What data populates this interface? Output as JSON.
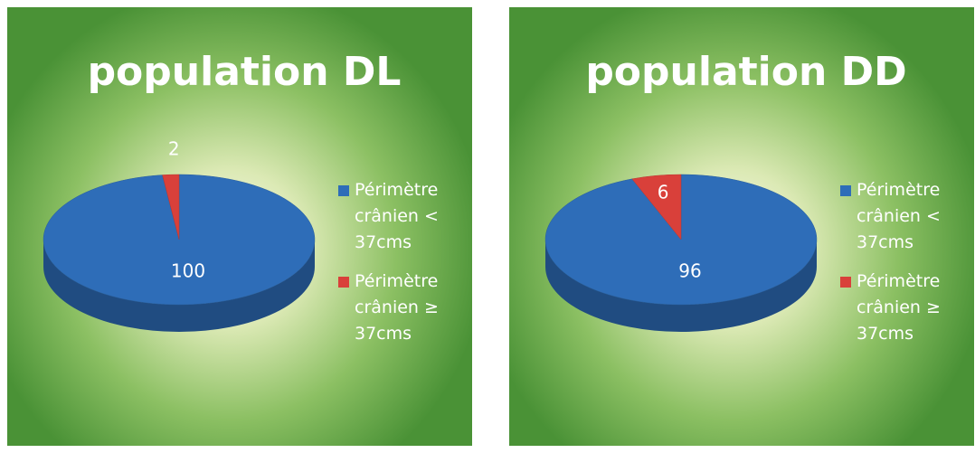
{
  "chart_data": [
    {
      "type": "pie",
      "title": "population DL",
      "categories": [
        "Périmètre crânien < 37cms",
        "Périmètre crânien ≥ 37cms"
      ],
      "values": [
        100,
        2
      ],
      "colors": [
        "#2e6db8",
        "#d9403a"
      ],
      "legend": "right"
    },
    {
      "type": "pie",
      "title": "population DD",
      "categories": [
        "Périmètre crânien < 37cms",
        "Périmètre crânien ≥ 37cms"
      ],
      "values": [
        96,
        6
      ],
      "colors": [
        "#2e6db8",
        "#d9403a"
      ],
      "legend": "right"
    }
  ]
}
